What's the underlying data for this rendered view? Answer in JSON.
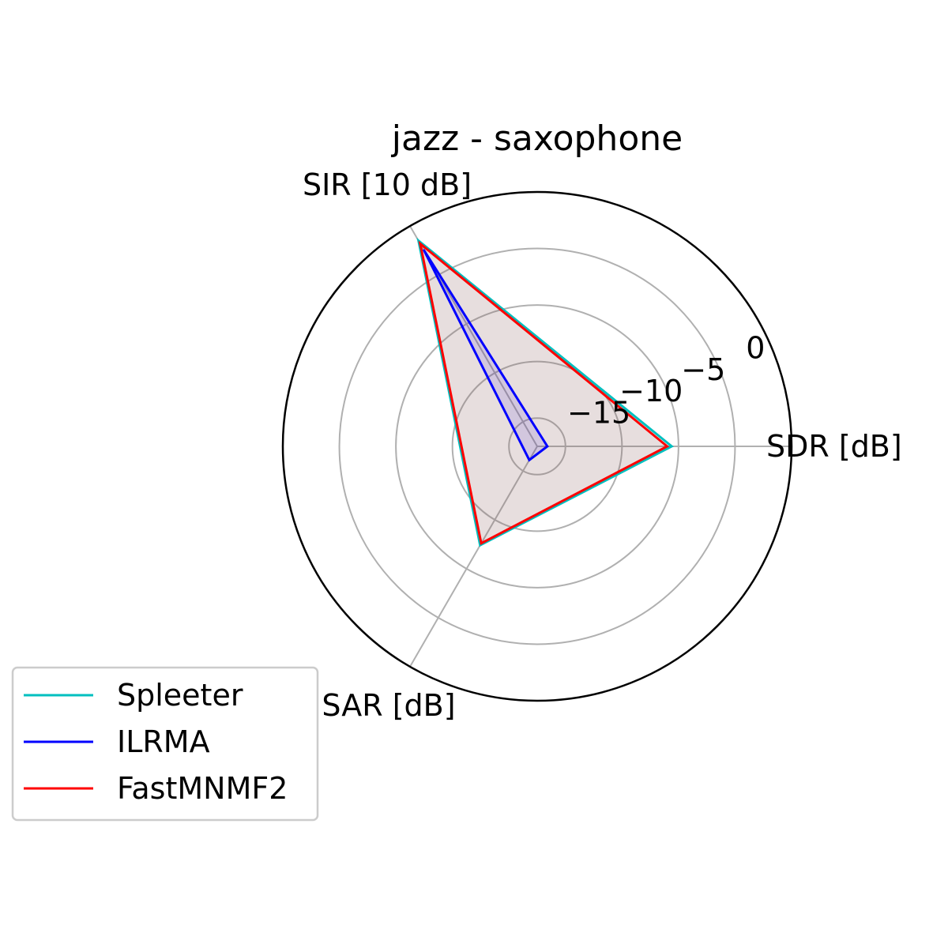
{
  "chart_data": {
    "type": "radar",
    "title": "jazz - saxophone",
    "axes": [
      "SDR [dB]",
      "SIR [10 dB]",
      "SAR [dB]"
    ],
    "radial_ticks": [
      "−15",
      "−10",
      "−5",
      "0"
    ],
    "radial_tick_values": [
      -15,
      -10,
      -5,
      0
    ],
    "rlim": [
      -20,
      2.5
    ],
    "grid": true,
    "legend_position": "lower-left",
    "series": [
      {
        "name": "Spleeter",
        "color": "#00bfbf",
        "fill": "#00bfbf",
        "values": [
          -8.1,
          1.0,
          -9.9
        ]
      },
      {
        "name": "ILRMA",
        "color": "#0000ff",
        "fill": "#0000ff",
        "values": [
          -19.1,
          0.1,
          -18.6
        ]
      },
      {
        "name": "FastMNMF2",
        "color": "#ff0000",
        "fill": "#ff0000",
        "values": [
          -8.5,
          0.7,
          -10.1
        ]
      }
    ]
  }
}
